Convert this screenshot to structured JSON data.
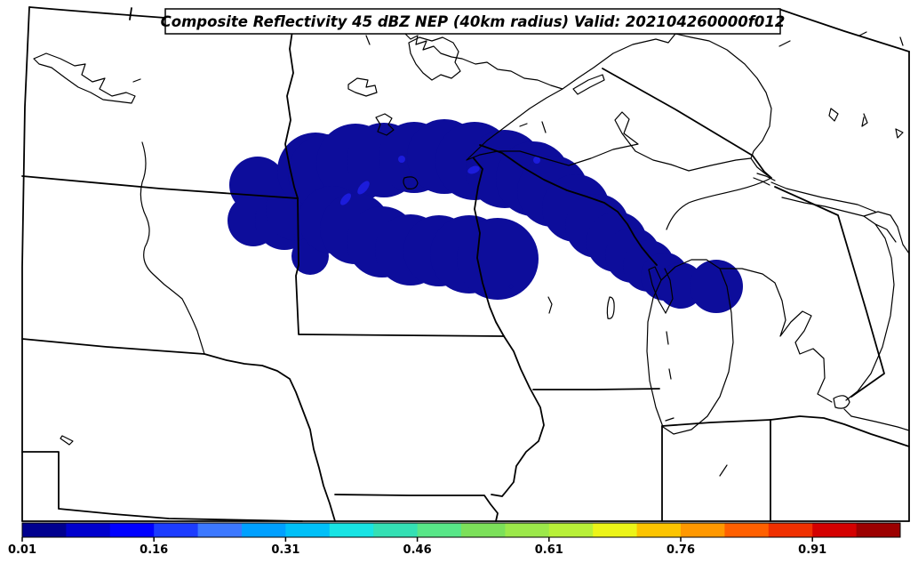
{
  "title": {
    "text": "Composite Reflectivity 45 dBZ NEP (40km radius) Valid: 202104260000f012"
  },
  "colorbar": {
    "tick_labels": [
      "0.01",
      "0.16",
      "0.31",
      "0.46",
      "0.61",
      "0.76",
      "0.91"
    ],
    "tick_values": [
      0.01,
      0.16,
      0.31,
      0.46,
      0.61,
      0.76,
      0.91
    ],
    "bin_interval": 0.05,
    "range_min": 0.01,
    "range_max": 1.01,
    "segment_colors": [
      "#00008f",
      "#0000cd",
      "#0000ff",
      "#1c3cff",
      "#3c78ff",
      "#00a0ff",
      "#00c0f8",
      "#18e4e4",
      "#34e0b4",
      "#58e688",
      "#7ce05a",
      "#9ce84a",
      "#b8f038",
      "#ecf418",
      "#fcc400",
      "#ff9800",
      "#ff6000",
      "#f03000",
      "#d40000",
      "#9c0000"
    ]
  },
  "map": {
    "background_color": "#ffffff",
    "outline_color": "#000000",
    "nep_region_base_color": "#0d0d9b",
    "nep_region_inner_color": "#1c1cdb",
    "region_shown": "Upper Midwest / western Great Lakes",
    "probability_band_location": "central Minnesota east-southeast across northern Wisconsin to Lake Michigan"
  }
}
